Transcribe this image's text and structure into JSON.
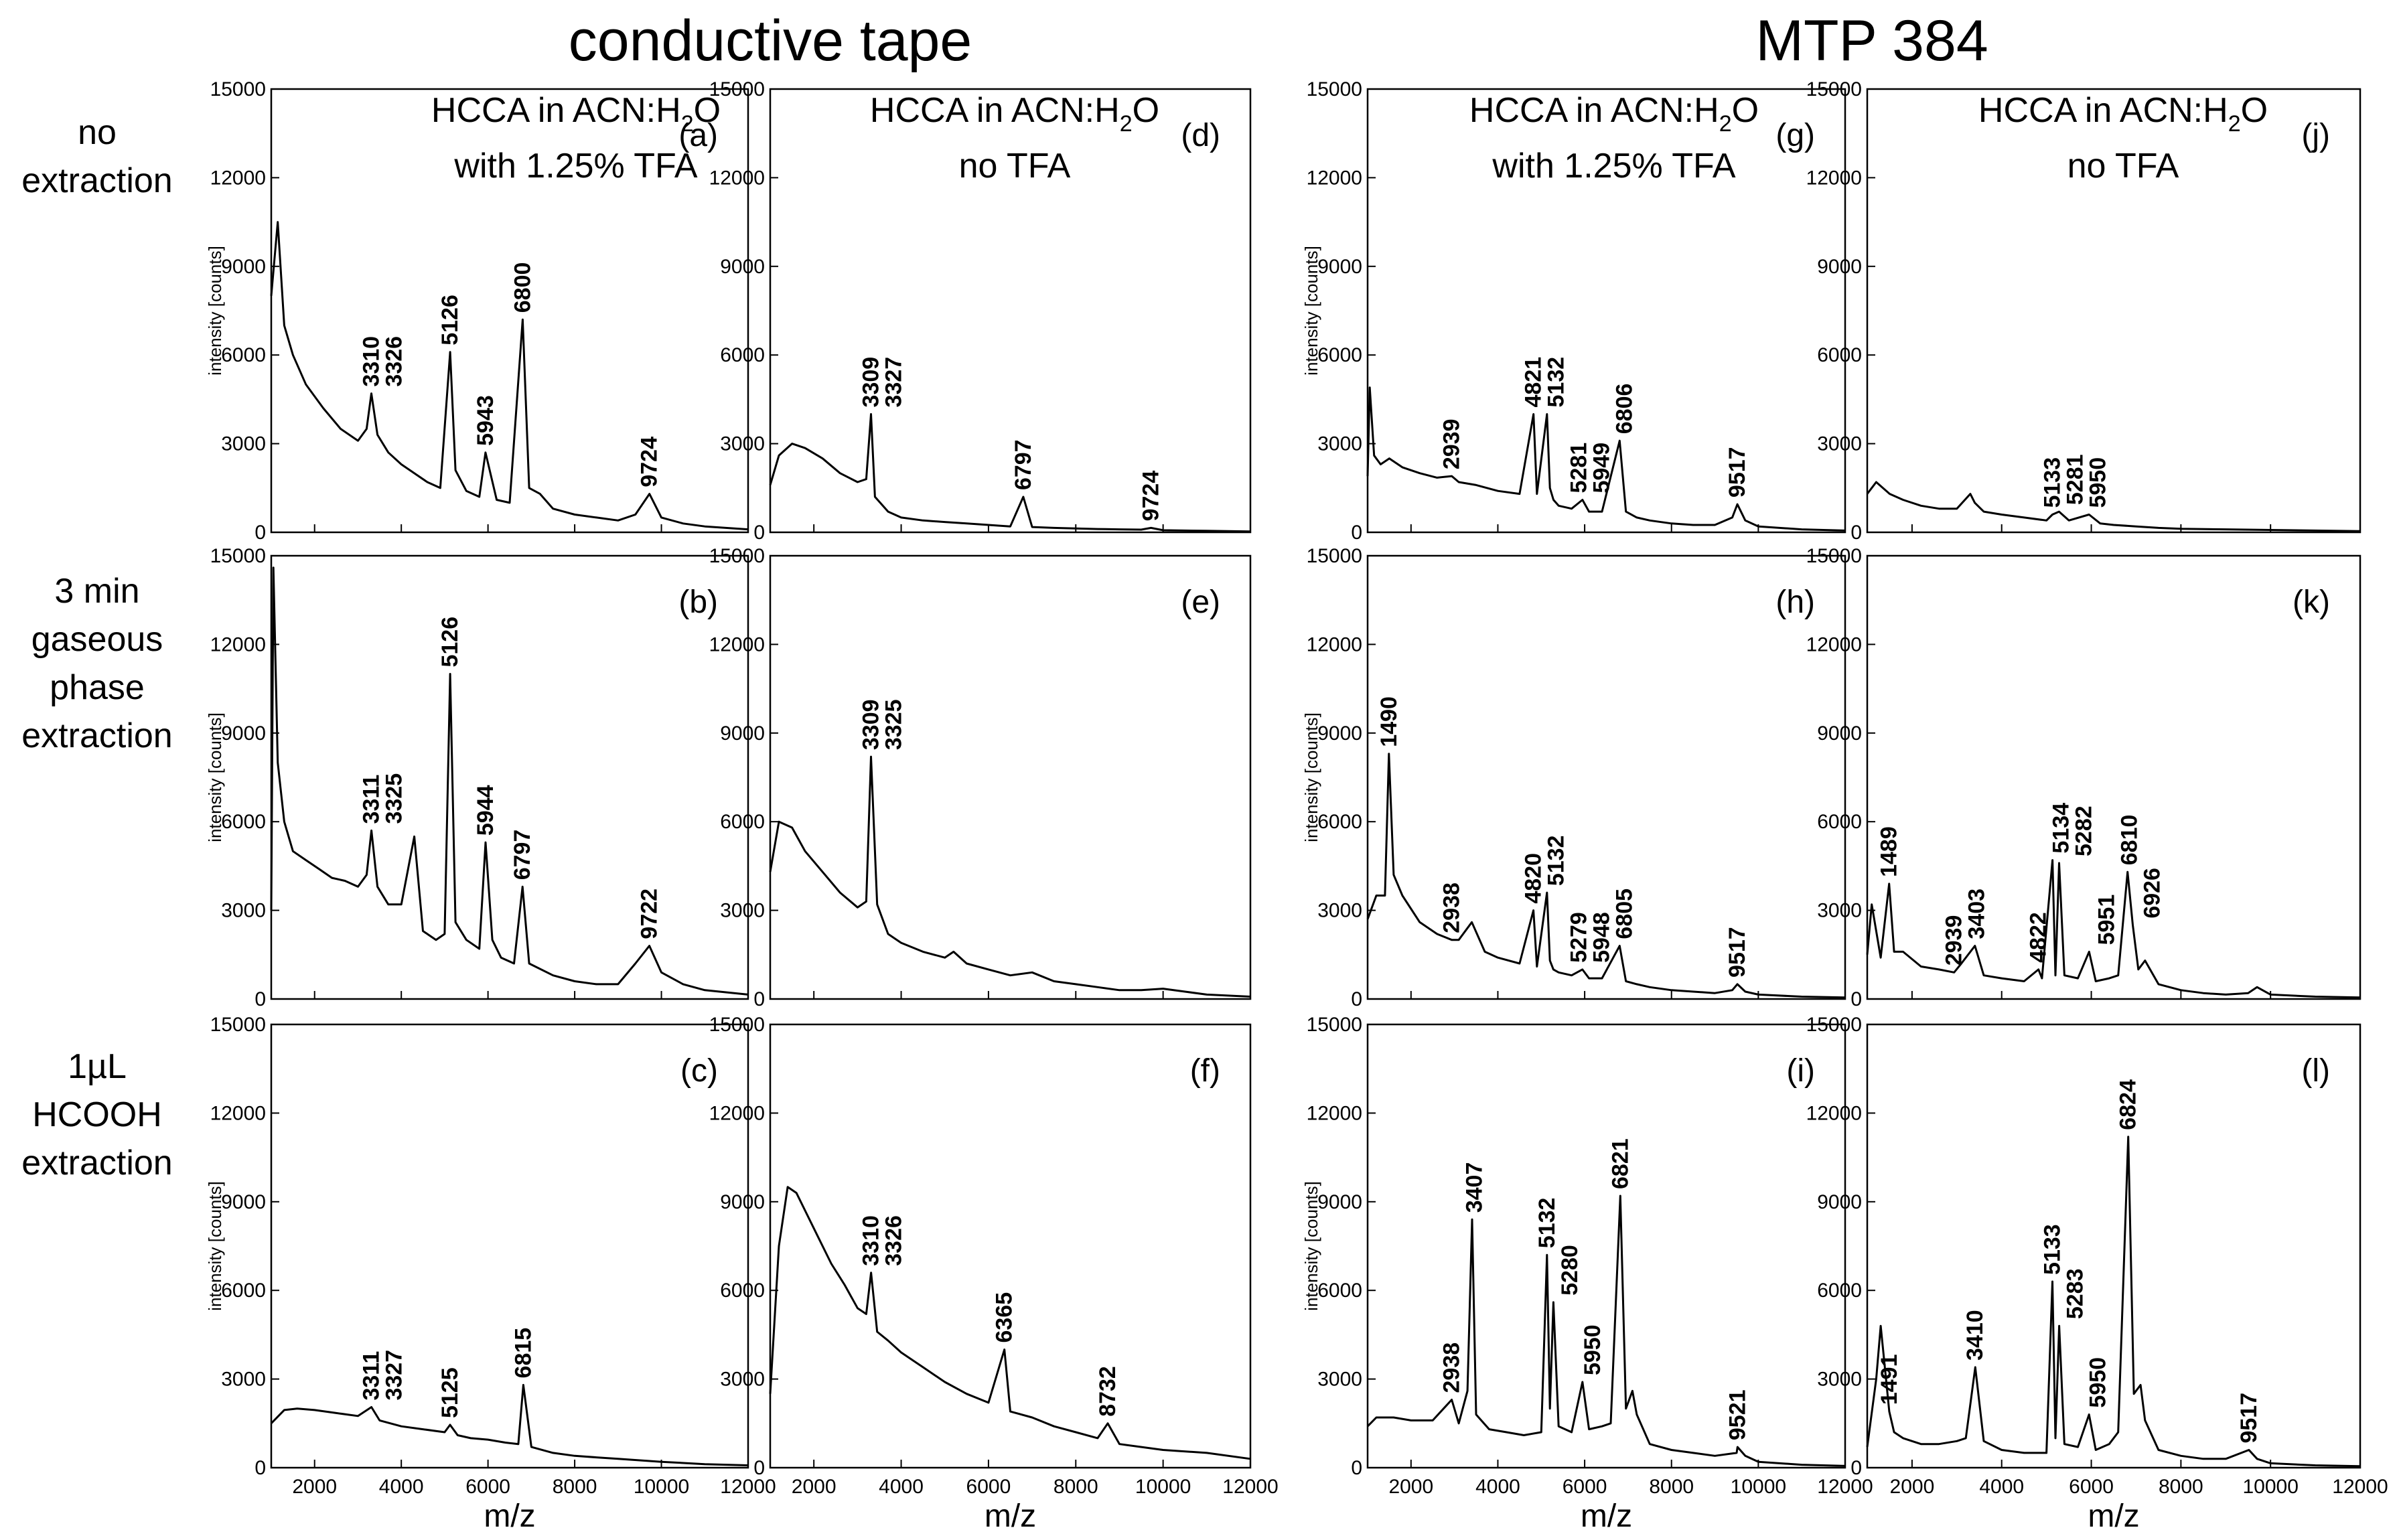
{
  "figure": {
    "group_titles": [
      "conductive tape",
      "MTP 384"
    ],
    "row_labels": [
      [
        "no",
        "extraction"
      ],
      [
        "3 min",
        "gaseous",
        "phase",
        "extraction"
      ],
      [
        "1µL",
        "HCOOH",
        "extraction"
      ]
    ],
    "conditions": [
      {
        "line1_main": "HCCA in ACN:H",
        "line1_sub": "2",
        "line1_end": "O",
        "line2": "with 1.25% TFA"
      },
      {
        "line1_main": "HCCA in ACN:H",
        "line1_sub": "2",
        "line1_end": "O",
        "line2": "no TFA"
      },
      {
        "line1_main": "HCCA in ACN:H",
        "line1_sub": "2",
        "line1_end": "O",
        "line2": "with 1.25% TFA"
      },
      {
        "line1_main": "HCCA in ACN:H",
        "line1_sub": "2",
        "line1_end": "O",
        "line2": "no TFA"
      }
    ]
  },
  "chart_data": [
    {
      "type": "line",
      "panel": "(a)",
      "xlabel": "",
      "ylabel": "intensity [counts]",
      "xlim": [
        1000,
        12000
      ],
      "ylim": [
        0,
        15000
      ],
      "x": [
        1000,
        1150,
        1300,
        1500,
        1800,
        2200,
        2600,
        3000,
        3200,
        3310,
        3450,
        3700,
        4000,
        4300,
        4600,
        4900,
        5126,
        5250,
        5500,
        5800,
        5943,
        6200,
        6500,
        6800,
        6950,
        7200,
        7500,
        8000,
        8500,
        9000,
        9400,
        9724,
        10000,
        10500,
        11000,
        12000
      ],
      "y": [
        8000,
        10500,
        7000,
        6000,
        5000,
        4200,
        3500,
        3100,
        3500,
        4700,
        3300,
        2700,
        2300,
        2000,
        1700,
        1500,
        6100,
        2100,
        1400,
        1200,
        2700,
        1100,
        1000,
        7200,
        1500,
        1300,
        800,
        600,
        500,
        400,
        600,
        1300,
        500,
        300,
        200,
        100
      ],
      "peaks": [
        "3310",
        "3326",
        "5126",
        "5943",
        "6800",
        "9724"
      ]
    },
    {
      "type": "line",
      "panel": "(b)",
      "xlabel": "",
      "ylabel": "intensity [counts]",
      "xlim": [
        1000,
        12000
      ],
      "ylim": [
        0,
        15000
      ],
      "x": [
        1000,
        1050,
        1150,
        1300,
        1500,
        1800,
        2100,
        2400,
        2700,
        3000,
        3200,
        3311,
        3450,
        3700,
        4000,
        4300,
        4500,
        4800,
        5000,
        5126,
        5250,
        5500,
        5800,
        5944,
        6100,
        6300,
        6600,
        6797,
        6950,
        7500,
        8000,
        8500,
        9000,
        9400,
        9722,
        10000,
        10500,
        11000,
        12000
      ],
      "y": [
        3000,
        14600,
        8000,
        6000,
        5000,
        4700,
        4400,
        4100,
        4000,
        3800,
        4200,
        5700,
        3800,
        3200,
        3200,
        5500,
        2300,
        2000,
        2200,
        11000,
        2600,
        2000,
        1700,
        5300,
        2000,
        1400,
        1200,
        3800,
        1200,
        800,
        600,
        500,
        500,
        1200,
        1800,
        900,
        500,
        300,
        150
      ],
      "peaks": [
        "3311",
        "3325",
        "5126",
        "5944",
        "6797",
        "9722"
      ]
    },
    {
      "type": "line",
      "panel": "(c)",
      "xlabel": "m/z",
      "ylabel": "intensity [counts]",
      "xlim": [
        1000,
        12000
      ],
      "ylim": [
        0,
        15000
      ],
      "x": [
        1000,
        1300,
        1600,
        2000,
        2500,
        3000,
        3311,
        3500,
        4000,
        4500,
        5000,
        5125,
        5300,
        5600,
        6000,
        6400,
        6700,
        6815,
        7000,
        7500,
        8000,
        8500,
        9000,
        9500,
        10000,
        11000,
        12000
      ],
      "y": [
        1500,
        1950,
        2000,
        1950,
        1850,
        1750,
        2050,
        1600,
        1400,
        1300,
        1200,
        1450,
        1100,
        1000,
        950,
        850,
        800,
        2800,
        700,
        500,
        400,
        350,
        300,
        250,
        200,
        120,
        80
      ],
      "peaks": [
        "3311",
        "3327",
        "5125",
        "6815"
      ]
    },
    {
      "type": "line",
      "panel": "(d)",
      "xlabel": "",
      "ylabel": "",
      "xlim": [
        1000,
        12000
      ],
      "ylim": [
        0,
        15000
      ],
      "x": [
        1000,
        1200,
        1500,
        1800,
        2200,
        2600,
        3000,
        3200,
        3309,
        3400,
        3700,
        4000,
        4500,
        5000,
        5500,
        6000,
        6500,
        6797,
        7000,
        7500,
        8000,
        8500,
        9000,
        9500,
        9724,
        10000,
        11000,
        12000
      ],
      "y": [
        1600,
        2600,
        3000,
        2850,
        2500,
        2000,
        1700,
        1800,
        4000,
        1200,
        700,
        500,
        400,
        350,
        300,
        250,
        200,
        1200,
        180,
        150,
        130,
        110,
        100,
        90,
        150,
        70,
        50,
        30
      ],
      "peaks": [
        "3309",
        "3327",
        "6797",
        "9724"
      ]
    },
    {
      "type": "line",
      "panel": "(e)",
      "xlabel": "",
      "ylabel": "",
      "xlim": [
        1000,
        12000
      ],
      "ylim": [
        0,
        15000
      ],
      "x": [
        1000,
        1200,
        1500,
        1800,
        2200,
        2600,
        3000,
        3200,
        3309,
        3450,
        3700,
        4000,
        4500,
        5000,
        5200,
        5500,
        6000,
        6500,
        7000,
        7500,
        8000,
        8500,
        9000,
        9500,
        10000,
        10500,
        11000,
        12000
      ],
      "y": [
        4300,
        6000,
        5800,
        5000,
        4300,
        3600,
        3100,
        3300,
        8200,
        3200,
        2200,
        1900,
        1600,
        1400,
        1600,
        1200,
        1000,
        800,
        900,
        600,
        500,
        400,
        300,
        300,
        350,
        250,
        150,
        80
      ],
      "peaks": [
        "3309",
        "3325"
      ]
    },
    {
      "type": "line",
      "panel": "(f)",
      "xlabel": "m/z",
      "ylabel": "",
      "xlim": [
        1000,
        12000
      ],
      "ylim": [
        0,
        15000
      ],
      "x": [
        1000,
        1200,
        1400,
        1600,
        1800,
        2100,
        2400,
        2700,
        3000,
        3200,
        3310,
        3450,
        3700,
        4000,
        4500,
        5000,
        5500,
        6000,
        6365,
        6500,
        7000,
        7500,
        8000,
        8500,
        8732,
        9000,
        10000,
        11000,
        12000
      ],
      "y": [
        2500,
        7500,
        9500,
        9300,
        8700,
        7800,
        6900,
        6200,
        5400,
        5200,
        6600,
        4600,
        4300,
        3900,
        3400,
        2900,
        2500,
        2200,
        4000,
        1900,
        1700,
        1400,
        1200,
        1000,
        1500,
        800,
        600,
        500,
        300
      ],
      "peaks": [
        "3310",
        "3326",
        "6365",
        "8732"
      ]
    },
    {
      "type": "line",
      "panel": "(g)",
      "xlabel": "",
      "ylabel": "intensity [counts]",
      "xlim": [
        1000,
        12000
      ],
      "ylim": [
        0,
        15000
      ],
      "x": [
        1000,
        1050,
        1150,
        1300,
        1500,
        1800,
        2200,
        2600,
        2939,
        3100,
        3500,
        4000,
        4500,
        4821,
        4900,
        5132,
        5200,
        5281,
        5400,
        5700,
        5949,
        6100,
        6400,
        6806,
        6950,
        7200,
        7500,
        8000,
        8500,
        9000,
        9400,
        9517,
        9700,
        10000,
        11000,
        12000
      ],
      "y": [
        1900,
        4900,
        2600,
        2300,
        2500,
        2200,
        2000,
        1850,
        1900,
        1700,
        1600,
        1400,
        1300,
        4000,
        1300,
        4000,
        1500,
        1100,
        900,
        800,
        1100,
        700,
        700,
        3100,
        700,
        500,
        400,
        300,
        250,
        250,
        500,
        950,
        400,
        200,
        100,
        60
      ],
      "peaks": [
        "2939",
        "4821",
        "5132",
        "5281",
        "5949",
        "6806",
        "9517"
      ]
    },
    {
      "type": "line",
      "panel": "(h)",
      "xlabel": "",
      "ylabel": "intensity [counts]",
      "xlim": [
        1000,
        12000
      ],
      "ylim": [
        0,
        15000
      ],
      "x": [
        1000,
        1200,
        1400,
        1490,
        1600,
        1800,
        2200,
        2600,
        2938,
        3100,
        3400,
        3700,
        4000,
        4500,
        4820,
        4900,
        5132,
        5200,
        5279,
        5400,
        5700,
        5948,
        6100,
        6400,
        6805,
        6950,
        7200,
        7500,
        8000,
        8500,
        9000,
        9400,
        9517,
        9700,
        10000,
        11000,
        12000
      ],
      "y": [
        2700,
        3500,
        3500,
        8300,
        4200,
        3500,
        2600,
        2200,
        2000,
        2000,
        2600,
        1600,
        1400,
        1200,
        3000,
        1100,
        3600,
        1300,
        1000,
        900,
        800,
        1000,
        700,
        700,
        1800,
        600,
        500,
        400,
        300,
        250,
        200,
        300,
        500,
        250,
        150,
        80,
        50
      ],
      "peaks": [
        "1490",
        "2938",
        "4820",
        "5132",
        "5279",
        "5948",
        "6805",
        "9517"
      ]
    },
    {
      "type": "line",
      "panel": "(i)",
      "xlabel": "m/z",
      "ylabel": "intensity [counts]",
      "xlim": [
        1000,
        12000
      ],
      "ylim": [
        0,
        15000
      ],
      "x": [
        1000,
        1200,
        1600,
        2000,
        2500,
        2938,
        3100,
        3300,
        3407,
        3500,
        3800,
        4200,
        4600,
        5000,
        5132,
        5200,
        5280,
        5400,
        5700,
        5950,
        6100,
        6400,
        6600,
        6821,
        6950,
        7100,
        7200,
        7500,
        8000,
        8500,
        9000,
        9500,
        9521,
        9700,
        10000,
        11000,
        12000
      ],
      "y": [
        1400,
        1700,
        1700,
        1600,
        1600,
        2300,
        1500,
        2600,
        8400,
        1800,
        1300,
        1200,
        1100,
        1200,
        7200,
        2000,
        5600,
        1400,
        1200,
        2900,
        1300,
        1400,
        1500,
        9200,
        2000,
        2600,
        1800,
        800,
        600,
        500,
        400,
        500,
        700,
        400,
        200,
        100,
        60
      ],
      "peaks": [
        "2938",
        "3407",
        "5132",
        "5280",
        "5950",
        "6821",
        "9521"
      ]
    },
    {
      "type": "line",
      "panel": "(j)",
      "xlabel": "",
      "ylabel": "",
      "xlim": [
        1000,
        12000
      ],
      "ylim": [
        0,
        15000
      ],
      "x": [
        1000,
        1200,
        1500,
        1800,
        2200,
        2600,
        3000,
        3300,
        3400,
        3600,
        4000,
        4500,
        5000,
        5133,
        5281,
        5500,
        5950,
        6200,
        6500,
        7000,
        7500,
        8000,
        9000,
        10000,
        11000,
        12000
      ],
      "y": [
        1300,
        1700,
        1300,
        1100,
        900,
        800,
        800,
        1300,
        1000,
        700,
        600,
        500,
        400,
        600,
        700,
        400,
        600,
        300,
        250,
        200,
        150,
        120,
        100,
        80,
        60,
        40
      ],
      "peaks": [
        "5133",
        "5281",
        "5950"
      ]
    },
    {
      "type": "line",
      "panel": "(k)",
      "xlabel": "",
      "ylabel": "",
      "xlim": [
        1000,
        12000
      ],
      "ylim": [
        0,
        15000
      ],
      "x": [
        1000,
        1100,
        1300,
        1489,
        1600,
        1800,
        2200,
        2600,
        2939,
        3100,
        3403,
        3600,
        4000,
        4500,
        4822,
        4900,
        5134,
        5200,
        5282,
        5400,
        5700,
        5951,
        6100,
        6400,
        6600,
        6810,
        6926,
        7050,
        7200,
        7500,
        8000,
        8500,
        9000,
        9500,
        9700,
        10000,
        11000,
        12000
      ],
      "y": [
        1500,
        3200,
        1400,
        3900,
        1600,
        1600,
        1100,
        1000,
        900,
        1200,
        1800,
        800,
        700,
        600,
        1000,
        700,
        4700,
        800,
        4600,
        800,
        700,
        1600,
        600,
        700,
        800,
        4300,
        2500,
        1000,
        1300,
        500,
        300,
        200,
        150,
        200,
        400,
        150,
        80,
        50
      ],
      "peaks": [
        "1489",
        "2939",
        "3403",
        "4822",
        "5134",
        "5282",
        "5951",
        "6810",
        "6926"
      ]
    },
    {
      "type": "line",
      "panel": "(l)",
      "xlabel": "m/z",
      "ylabel": "",
      "xlim": [
        1000,
        12000
      ],
      "ylim": [
        0,
        15000
      ],
      "x": [
        1000,
        1200,
        1300,
        1491,
        1600,
        1800,
        2200,
        2600,
        3000,
        3200,
        3410,
        3600,
        4000,
        4500,
        5000,
        5133,
        5200,
        5283,
        5400,
        5700,
        5950,
        6100,
        6400,
        6600,
        6824,
        6950,
        7100,
        7200,
        7500,
        8000,
        8500,
        9000,
        9517,
        9700,
        10000,
        11000,
        12000
      ],
      "y": [
        700,
        3000,
        4800,
        1900,
        1200,
        1000,
        800,
        800,
        900,
        1000,
        3400,
        900,
        600,
        500,
        500,
        6300,
        1000,
        4800,
        800,
        700,
        1800,
        600,
        800,
        1200,
        11200,
        2500,
        2800,
        1600,
        600,
        400,
        300,
        300,
        600,
        300,
        150,
        80,
        50
      ],
      "peaks": [
        "1491",
        "3410",
        "5133",
        "5283",
        "5950",
        "6824",
        "9517"
      ]
    }
  ],
  "shared_axes": {
    "x_ticks": [
      "2000",
      "4000",
      "6000",
      "8000",
      "10000",
      "12000"
    ],
    "y_ticks": [
      "0",
      "3000",
      "6000",
      "9000",
      "12000",
      "15000"
    ]
  }
}
